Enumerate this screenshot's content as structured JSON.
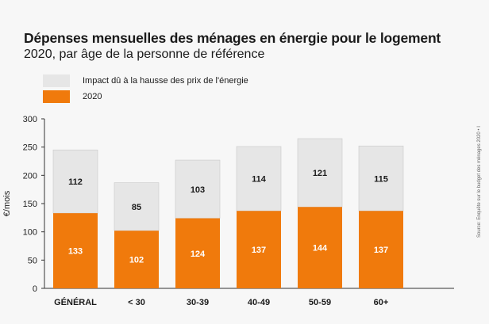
{
  "title": "Dépenses mensuelles des ménages en énergie pour le logement",
  "subtitle": "2020, par âge de la personne de référence",
  "source": "Source: Enquête sur le budget des ménages 2020 • I",
  "colors": {
    "base": "#f07a0c",
    "impact": "#e6e6e6",
    "impact_border": "#c9c9c9"
  },
  "chart_data": {
    "type": "bar",
    "stacked": true,
    "ylabel": "€/mois",
    "ylim": [
      0,
      300
    ],
    "yticks": [
      0,
      50,
      100,
      150,
      200,
      250,
      300
    ],
    "categories": [
      "GÉNÉRAL",
      "< 30",
      "30-39",
      "40-49",
      "50-59",
      "60+"
    ],
    "series": [
      {
        "name": "2020",
        "values": [
          133,
          102,
          124,
          137,
          144,
          137
        ]
      },
      {
        "name": "Impact dû à la hausse des prix de l'énergie",
        "values": [
          112,
          85,
          103,
          114,
          121,
          115
        ]
      }
    ],
    "legend_position": "top-left",
    "grid": false
  }
}
